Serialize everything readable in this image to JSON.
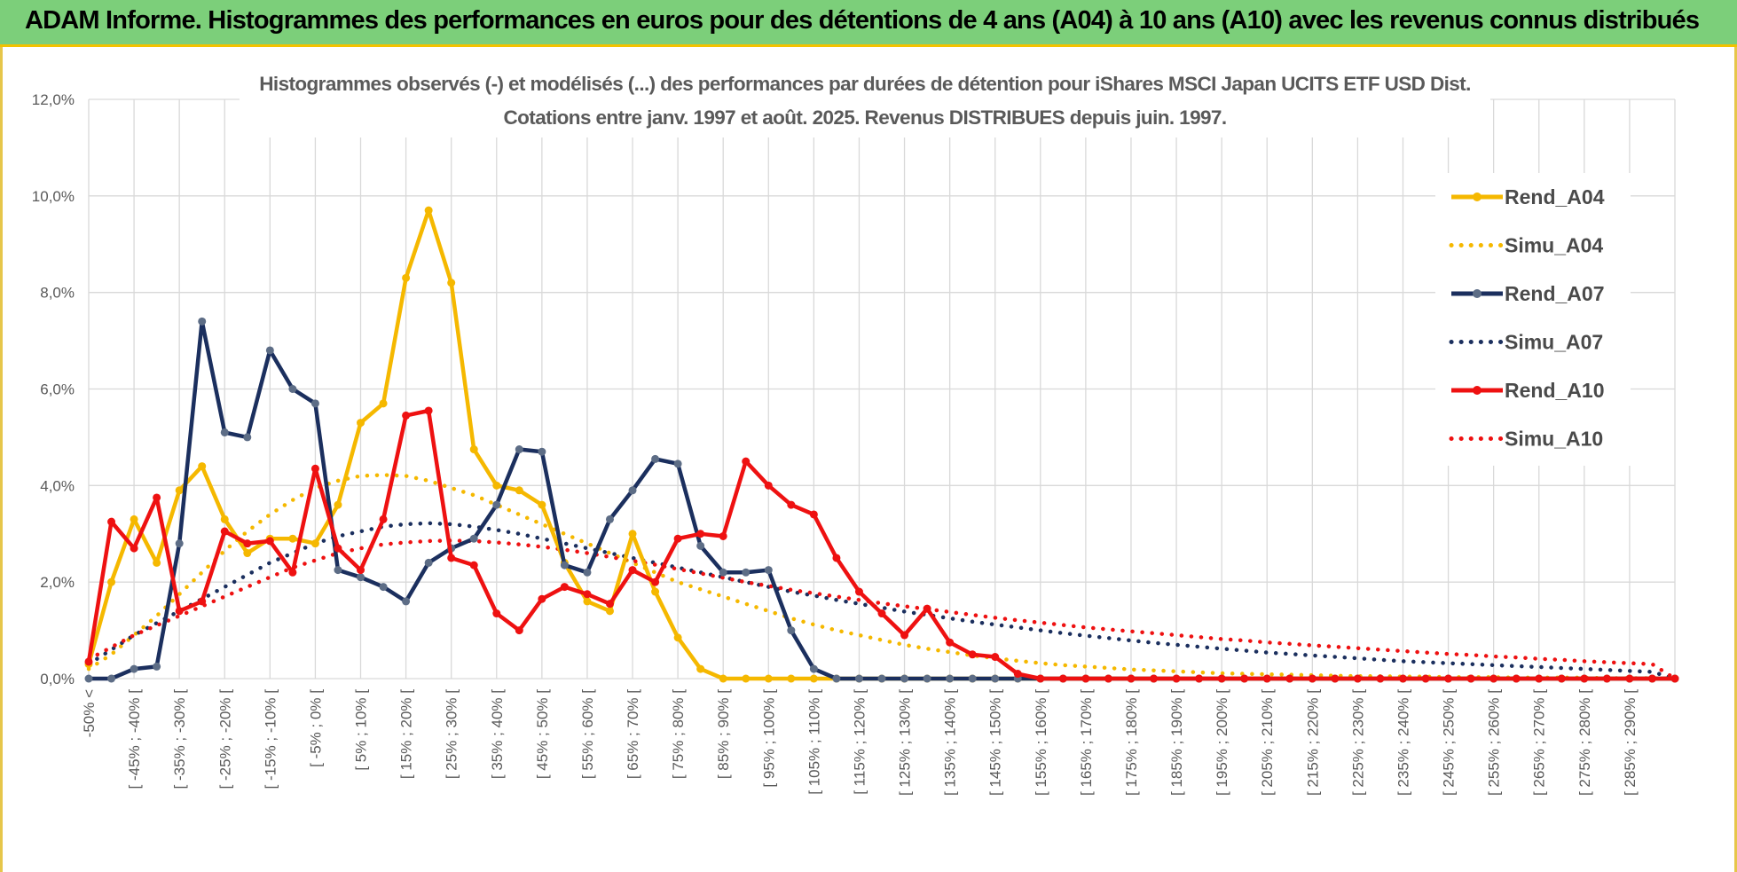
{
  "banner": {
    "title": "ADAM Informe. Histogrammes des performances en euros pour des détentions de 4 ans (A04) à 10 ans (A10) avec les revenus connus distribués"
  },
  "chart_data": {
    "type": "line",
    "title_lines": [
      "Histogrammes observés (-) et modélisés (...) des performances par durées de détention pour iShares MSCI Japan UCITS ETF USD Dist.",
      "Cotations entre janv. 1997 et août. 2025. Revenus DISTRIBUES depuis juin. 1997."
    ],
    "ylim": [
      0,
      12
    ],
    "yticks": [
      "0,0%",
      "2,0%",
      "4,0%",
      "6,0%",
      "8,0%",
      "10,0%",
      "12,0%"
    ],
    "x_labels": [
      "-50% <",
      "[ -45% ; -40% [",
      "[ -35% ; -30% [",
      "[ -25% ; -20% [",
      "[ -15% ; -10% [",
      "[ -5% ; 0% [",
      "[ 5% ; 10% [",
      "[ 15% ; 20% [",
      "[ 25% ; 30% [",
      "[ 35% ; 40% [",
      "[ 45% ; 50% [",
      "[ 55% ; 60% [",
      "[ 65% ; 70% [",
      "[ 75% ; 80% [",
      "[ 85% ; 90% [",
      "[ 95% ; 100% [",
      "[ 105% ; 110% [",
      "[ 115% ; 120% [",
      "[ 125% ; 130% [",
      "[ 135% ; 140% [",
      "[ 145% ; 150% [",
      "[ 155% ; 160% [",
      "[ 165% ; 170% [",
      "[ 175% ; 180% [",
      "[ 185% ; 190% [",
      "[ 195% ; 200% [",
      "[ 205% ; 210% [",
      "[ 215% ; 220% [",
      "[ 225% ; 230% [",
      "[ 235% ; 240% [",
      "[ 245% ; 250% [",
      "[ 255% ; 260% [",
      "[ 265% ; 270% [",
      "[ 275% ; 280% [",
      "[ 285% ; 290% ["
    ],
    "grid": true,
    "legend_position": "right",
    "series": [
      {
        "name": "Rend_A04",
        "style": "solid",
        "color": "#f5b800",
        "values": [
          0.3,
          2.0,
          3.3,
          2.4,
          3.9,
          4.4,
          3.3,
          2.6,
          2.9,
          2.9,
          2.8,
          3.6,
          5.3,
          5.7,
          8.3,
          9.7,
          8.2,
          4.75,
          4.0,
          3.9,
          3.6,
          2.4,
          1.6,
          1.4,
          3.0,
          1.8,
          0.85,
          0.2,
          0,
          0,
          0,
          0,
          0,
          0,
          0,
          0,
          0,
          0,
          0,
          0,
          0,
          0,
          0,
          0,
          0,
          0,
          0,
          0,
          0,
          0,
          0,
          0,
          0,
          0,
          0,
          0,
          0,
          0,
          0,
          0,
          0,
          0,
          0,
          0,
          0,
          0,
          0,
          0,
          0,
          0,
          0
        ]
      },
      {
        "name": "Simu_A04",
        "style": "dotted",
        "color": "#f5b800",
        "values": [
          0.2,
          0.5,
          0.9,
          1.3,
          1.75,
          2.2,
          2.65,
          3.05,
          3.4,
          3.7,
          3.95,
          4.1,
          4.2,
          4.22,
          4.2,
          4.1,
          3.95,
          3.8,
          3.6,
          3.4,
          3.2,
          3.0,
          2.8,
          2.6,
          2.4,
          2.2,
          2.0,
          1.85,
          1.7,
          1.55,
          1.4,
          1.25,
          1.12,
          1.0,
          0.9,
          0.8,
          0.7,
          0.62,
          0.55,
          0.48,
          0.42,
          0.37,
          0.32,
          0.28,
          0.25,
          0.22,
          0.19,
          0.17,
          0.15,
          0.13,
          0.11,
          0.1,
          0.09,
          0.08,
          0.07,
          0.06,
          0.05,
          0.05,
          0.04,
          0.04,
          0.03,
          0.03,
          0.03,
          0.02,
          0.02,
          0.02,
          0.02,
          0.01,
          0.01,
          0.01,
          0.0
        ]
      },
      {
        "name": "Rend_A07",
        "style": "solid",
        "color": "#1b2f5e",
        "values": [
          0.0,
          0.0,
          0.2,
          0.25,
          2.8,
          7.4,
          5.1,
          5.0,
          6.8,
          6.0,
          5.7,
          2.25,
          2.1,
          1.9,
          1.6,
          2.4,
          2.7,
          2.9,
          3.6,
          4.75,
          4.7,
          2.35,
          2.2,
          3.3,
          3.9,
          4.55,
          4.45,
          2.75,
          2.2,
          2.2,
          2.25,
          1.0,
          0.2,
          0,
          0,
          0,
          0,
          0,
          0,
          0,
          0,
          0,
          0,
          0,
          0,
          0,
          0,
          0,
          0,
          0,
          0,
          0,
          0,
          0,
          0,
          0,
          0,
          0,
          0,
          0,
          0,
          0,
          0,
          0,
          0,
          0,
          0,
          0,
          0,
          0,
          0
        ]
      },
      {
        "name": "Simu_A07",
        "style": "dotted",
        "color": "#1b2f5e",
        "values": [
          0.3,
          0.6,
          0.9,
          1.15,
          1.4,
          1.65,
          1.9,
          2.15,
          2.4,
          2.6,
          2.8,
          2.95,
          3.05,
          3.15,
          3.2,
          3.22,
          3.2,
          3.15,
          3.08,
          3.0,
          2.9,
          2.8,
          2.7,
          2.6,
          2.5,
          2.4,
          2.3,
          2.2,
          2.1,
          2.0,
          1.9,
          1.8,
          1.72,
          1.63,
          1.55,
          1.47,
          1.39,
          1.32,
          1.25,
          1.18,
          1.12,
          1.06,
          1.0,
          0.94,
          0.89,
          0.84,
          0.79,
          0.74,
          0.7,
          0.66,
          0.62,
          0.58,
          0.54,
          0.51,
          0.48,
          0.45,
          0.42,
          0.39,
          0.36,
          0.34,
          0.32,
          0.3,
          0.28,
          0.26,
          0.24,
          0.22,
          0.2,
          0.18,
          0.16,
          0.14,
          0.0
        ]
      },
      {
        "name": "Rend_A10",
        "style": "solid",
        "color": "#ee1111",
        "values": [
          0.35,
          3.25,
          2.7,
          3.75,
          1.4,
          1.6,
          3.05,
          2.8,
          2.85,
          2.2,
          4.35,
          2.7,
          2.25,
          3.3,
          5.45,
          5.55,
          2.5,
          2.35,
          1.35,
          1.0,
          1.65,
          1.9,
          1.75,
          1.55,
          2.25,
          2.0,
          2.9,
          3.0,
          2.95,
          4.5,
          4.0,
          3.6,
          3.4,
          2.5,
          1.8,
          1.35,
          0.9,
          1.45,
          0.75,
          0.5,
          0.45,
          0.1,
          0,
          0,
          0,
          0,
          0,
          0,
          0,
          0,
          0,
          0,
          0,
          0,
          0,
          0,
          0,
          0,
          0,
          0,
          0,
          0,
          0,
          0,
          0,
          0,
          0,
          0,
          0,
          0,
          0
        ]
      },
      {
        "name": "Simu_A10",
        "style": "dotted",
        "color": "#ee1111",
        "values": [
          0.4,
          0.65,
          0.9,
          1.1,
          1.3,
          1.5,
          1.7,
          1.9,
          2.1,
          2.3,
          2.45,
          2.6,
          2.7,
          2.78,
          2.82,
          2.85,
          2.86,
          2.85,
          2.82,
          2.78,
          2.73,
          2.67,
          2.6,
          2.52,
          2.44,
          2.36,
          2.27,
          2.18,
          2.09,
          2.0,
          1.92,
          1.84,
          1.77,
          1.7,
          1.63,
          1.56,
          1.5,
          1.44,
          1.38,
          1.32,
          1.26,
          1.21,
          1.16,
          1.11,
          1.06,
          1.02,
          0.98,
          0.94,
          0.9,
          0.86,
          0.82,
          0.79,
          0.75,
          0.72,
          0.69,
          0.66,
          0.63,
          0.6,
          0.57,
          0.54,
          0.51,
          0.49,
          0.46,
          0.44,
          0.41,
          0.39,
          0.36,
          0.34,
          0.32,
          0.3,
          0.0
        ]
      }
    ]
  }
}
